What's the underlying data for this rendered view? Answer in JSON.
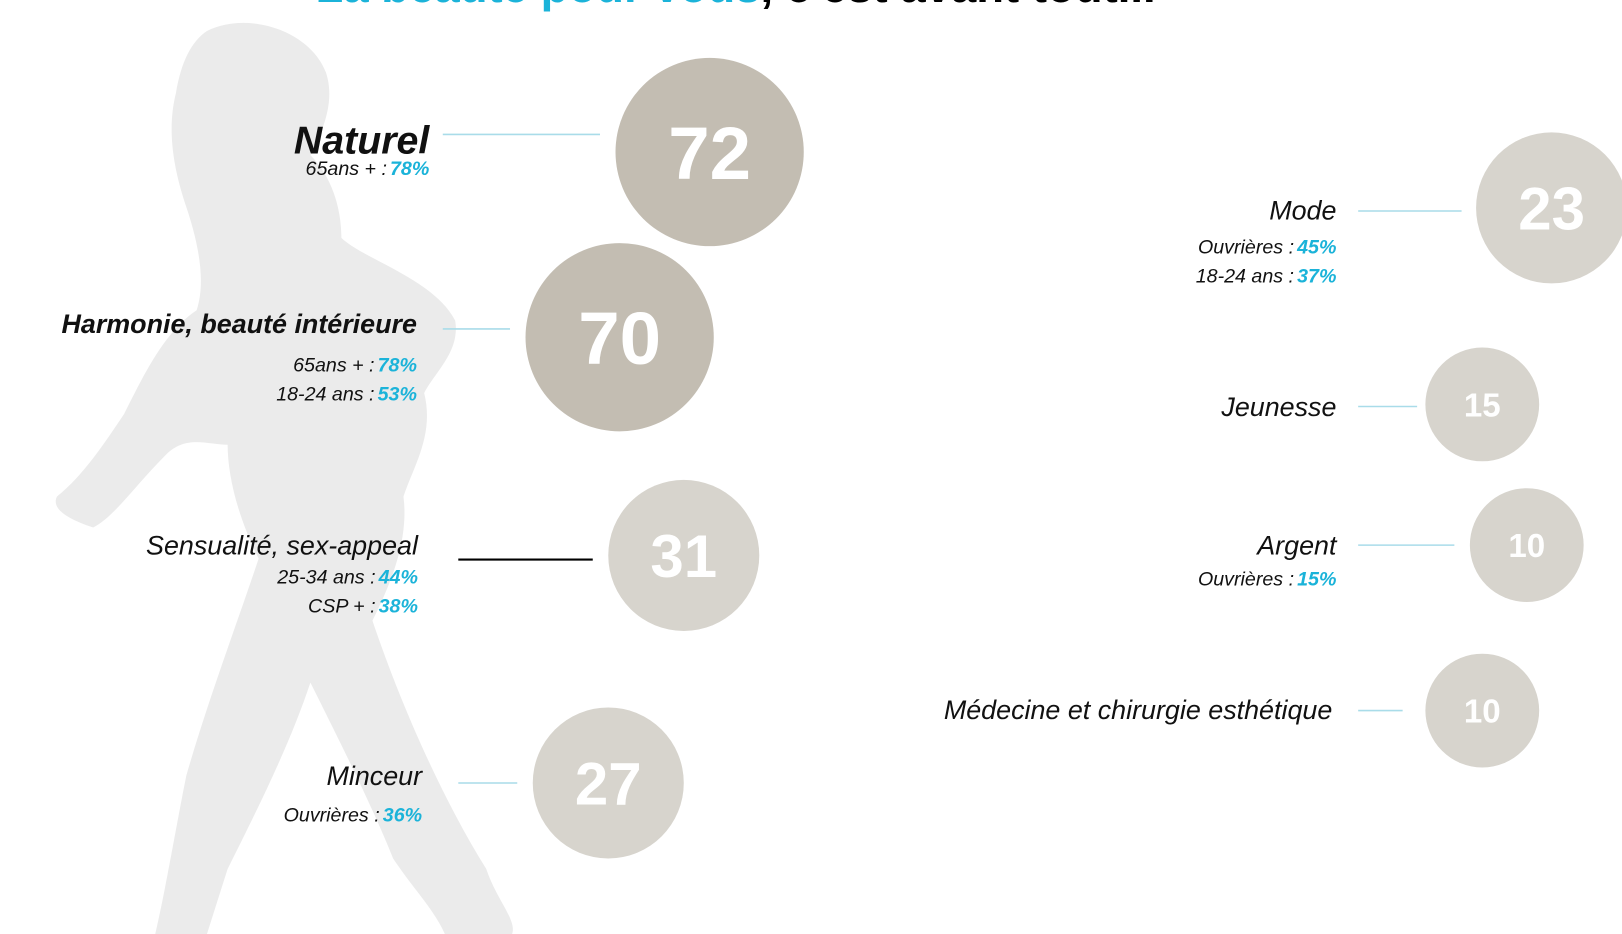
{
  "title": {
    "highlight": "La beauté pour vous",
    "rest": ", c'est avant tout..."
  },
  "items": [
    {
      "label": "Naturel",
      "value": "72",
      "details": [
        {
          "group": "65ans + :",
          "share": "78%"
        }
      ]
    },
    {
      "label": "Harmonie, beauté intérieure",
      "value": "70",
      "details": [
        {
          "group": "65ans + :",
          "share": "78%"
        },
        {
          "group": "18-24 ans :",
          "share": "53%"
        }
      ]
    },
    {
      "label": "Sensualité, sex-appeal",
      "value": "31",
      "details": [
        {
          "group": "25-34 ans :",
          "share": "44%"
        },
        {
          "group": "CSP + :",
          "share": "38%"
        }
      ]
    },
    {
      "label": "Minceur",
      "value": "27",
      "details": [
        {
          "group": "Ouvrières :",
          "share": "36%"
        }
      ]
    },
    {
      "label": "Mode",
      "value": "23",
      "details": [
        {
          "group": "Ouvrières :",
          "share": "45%"
        },
        {
          "group": "18-24 ans :",
          "share": "37%"
        }
      ]
    },
    {
      "label": "Jeunesse",
      "value": "15",
      "details": []
    },
    {
      "label": "Argent",
      "value": "10",
      "details": [
        {
          "group": "Ouvrières :",
          "share": "15%"
        }
      ]
    },
    {
      "label": "Médecine et chirurgie esthétique",
      "value": "10",
      "details": []
    }
  ]
}
